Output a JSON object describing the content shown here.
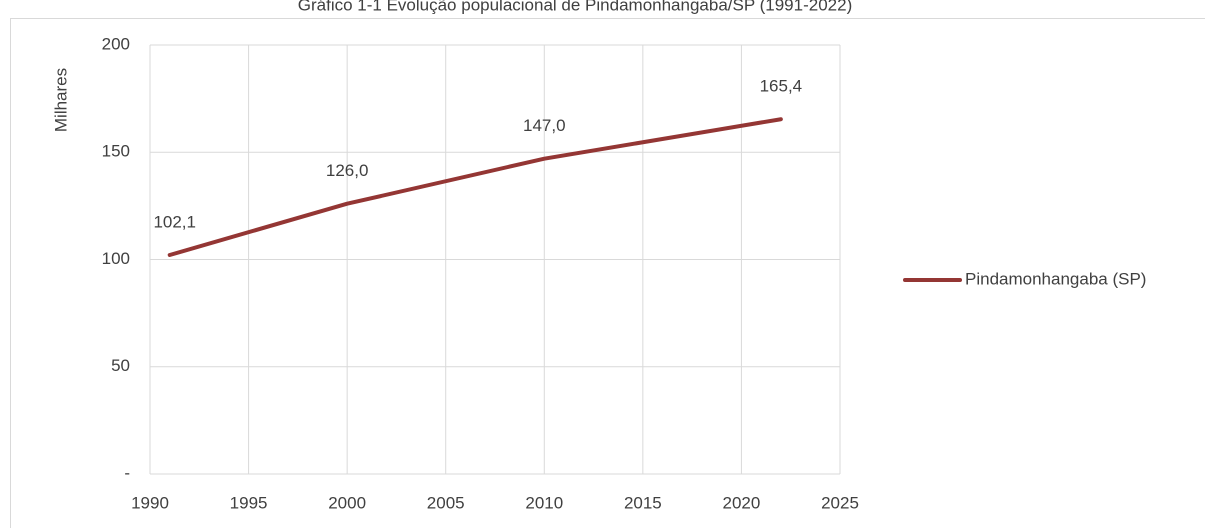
{
  "chart_data": {
    "type": "line",
    "title": "Gráfico 1-1 Evolução populacional de Pindamonhangaba/SP (1991-2022)",
    "y_label": "Milhares",
    "x": [
      1991,
      2000,
      2010,
      2022
    ],
    "series": [
      {
        "name": "Pindamonhangaba (SP)",
        "color": "#943634",
        "values": [
          102.1,
          126.0,
          147.0,
          165.4
        ],
        "value_labels": [
          "102,1",
          "126,0",
          "147,0",
          "165,4"
        ]
      }
    ],
    "xlim": [
      1990,
      2025
    ],
    "xticks": [
      1990,
      1995,
      2000,
      2005,
      2010,
      2015,
      2020,
      2025
    ],
    "ylim": [
      0,
      200
    ],
    "yticks": [
      {
        "value": 0,
        "label": "-"
      },
      50,
      100,
      150,
      200
    ],
    "grid": true,
    "legend": "right"
  }
}
